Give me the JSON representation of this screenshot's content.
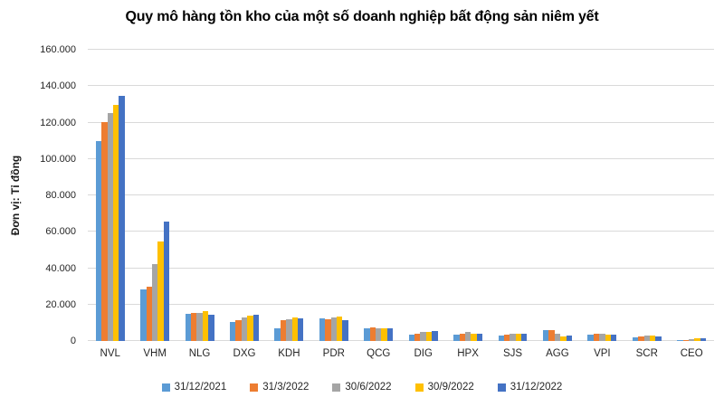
{
  "title": "Quy mô hàng tồn kho của một số doanh nghiệp bất động sản niêm yết",
  "y_axis_title": "Đơn vị: Tỉ đồng",
  "chart_data": {
    "type": "bar",
    "title": "Quy mô hàng tồn kho của một số doanh nghiệp bất động sản niêm yết",
    "ylabel": "Đơn vị: Tỉ đồng",
    "xlabel": "",
    "ylim": [
      0,
      160000
    ],
    "ytick_interval": 20000,
    "ytick_labels": [
      "0",
      "20.000",
      "40.000",
      "60.000",
      "80.000",
      "100.000",
      "120.000",
      "140.000",
      "160.000"
    ],
    "grid": true,
    "legend_position": "bottom",
    "categories": [
      "NVL",
      "VHM",
      "NLG",
      "DXG",
      "KDH",
      "PDR",
      "QCG",
      "DIG",
      "HPX",
      "SJS",
      "AGG",
      "VPI",
      "SCR",
      "CEO"
    ],
    "series": [
      {
        "name": "31/12/2021",
        "color": "#5B9BD5",
        "values": [
          110000,
          28500,
          15000,
          10500,
          7200,
          12200,
          7200,
          3300,
          3500,
          3100,
          6000,
          3500,
          2200,
          400
        ]
      },
      {
        "name": "31/3/2022",
        "color": "#ED7D31",
        "values": [
          120500,
          30000,
          15600,
          11500,
          11300,
          12000,
          7300,
          3900,
          4000,
          3300,
          6200,
          4000,
          2600,
          500
        ]
      },
      {
        "name": "30/6/2022",
        "color": "#A5A5A5",
        "values": [
          125200,
          42000,
          15400,
          12800,
          11800,
          12900,
          7200,
          5100,
          4900,
          4200,
          4200,
          3800,
          3200,
          900
        ]
      },
      {
        "name": "30/9/2022",
        "color": "#FFC000",
        "values": [
          129500,
          54500,
          16300,
          13800,
          13100,
          13500,
          7100,
          4900,
          3800,
          4000,
          2700,
          3400,
          2900,
          1400
        ]
      },
      {
        "name": "31/12/2022",
        "color": "#4472C4",
        "values": [
          134500,
          65800,
          14500,
          14200,
          12400,
          11500,
          7000,
          5400,
          3900,
          3800,
          3000,
          3600,
          2600,
          1500
        ]
      }
    ]
  }
}
